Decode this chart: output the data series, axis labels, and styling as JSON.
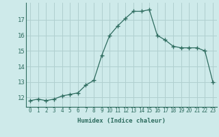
{
  "xlabel": "Humidex (Indice chaleur)",
  "x": [
    0,
    1,
    2,
    3,
    4,
    5,
    6,
    7,
    8,
    9,
    10,
    11,
    12,
    13,
    14,
    15,
    16,
    17,
    18,
    19,
    20,
    21,
    22,
    23
  ],
  "y": [
    11.8,
    11.9,
    11.8,
    11.9,
    12.1,
    12.2,
    12.3,
    12.8,
    13.1,
    14.7,
    16.0,
    16.6,
    17.1,
    17.55,
    17.55,
    17.65,
    16.0,
    15.7,
    15.3,
    15.2,
    15.2,
    15.2,
    15.0,
    13.0
  ],
  "line_color": "#2d6b5e",
  "marker": "+",
  "marker_size": 4,
  "bg_color": "#ceeaea",
  "grid_color": "#b0cfcf",
  "yticks": [
    12,
    13,
    14,
    15,
    16,
    17
  ],
  "ylim": [
    11.4,
    18.1
  ],
  "xlim": [
    -0.5,
    23.5
  ],
  "xlabel_fontsize": 6.5,
  "ytick_fontsize": 6.5,
  "xtick_fontsize": 5.5
}
